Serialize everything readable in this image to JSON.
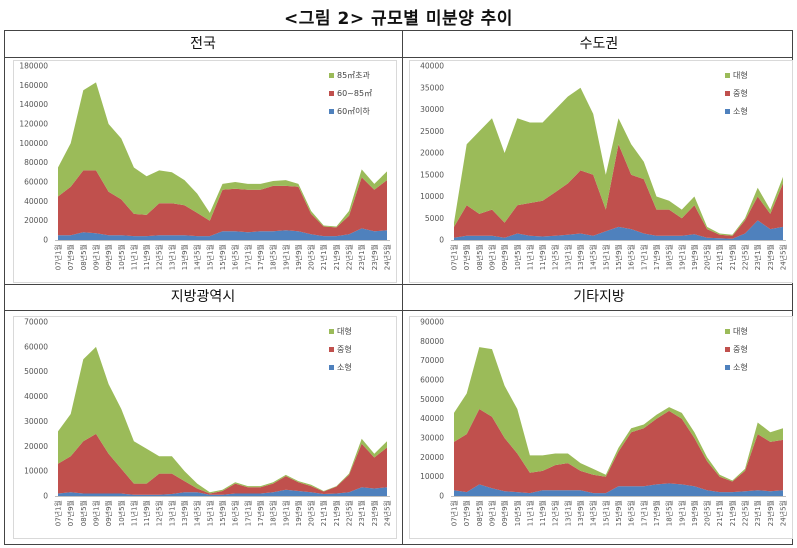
{
  "figure_title": "<그림 2> 규모별 미분양 추이",
  "colors": {
    "small": "#4f81bd",
    "medium": "#c0504d",
    "large": "#9bbb59"
  },
  "chart_data": [
    {
      "type": "area",
      "stacked": true,
      "title": "전국",
      "categories": [
        "07년1월",
        "07년9월",
        "08년5월",
        "09년1월",
        "09년9월",
        "10년5월",
        "11년1월",
        "11년9월",
        "12년5월",
        "13년1월",
        "13년9월",
        "14년5월",
        "15년1월",
        "15년9월",
        "16년5월",
        "17년1월",
        "17년9월",
        "18년5월",
        "19년1월",
        "19년9월",
        "20년5월",
        "21년1월",
        "21년9월",
        "22년5월",
        "23년1월",
        "23년9월",
        "24년5월"
      ],
      "ylim": [
        0,
        180000
      ],
      "yticks": [
        "0",
        "20000",
        "40000",
        "60000",
        "80000",
        "100000",
        "120000",
        "140000",
        "160000",
        "180000"
      ],
      "legend": "top-right",
      "series": [
        {
          "name": "60㎡이하",
          "values": [
            5000,
            5000,
            8000,
            7000,
            5000,
            5000,
            4000,
            4000,
            5000,
            5000,
            5000,
            4000,
            4000,
            9000,
            9000,
            8000,
            9000,
            9000,
            10000,
            9000,
            6000,
            4000,
            4000,
            6000,
            12000,
            9000,
            10000
          ]
        },
        {
          "name": "60~85㎡",
          "values": [
            40000,
            50000,
            64000,
            65000,
            45000,
            37000,
            23000,
            22000,
            33000,
            33000,
            31000,
            24000,
            16000,
            43000,
            44000,
            44000,
            43000,
            47000,
            46000,
            46000,
            21000,
            10000,
            9000,
            19000,
            53000,
            43000,
            52000
          ]
        },
        {
          "name": "85㎡초과",
          "values": [
            30000,
            45000,
            83000,
            91000,
            70000,
            63000,
            48000,
            40000,
            34000,
            32000,
            26000,
            20000,
            8000,
            6000,
            7000,
            6000,
            6000,
            5000,
            6000,
            3000,
            3000,
            1000,
            1000,
            5000,
            8000,
            6000,
            9000
          ]
        }
      ]
    },
    {
      "type": "area",
      "stacked": true,
      "title": "수도권",
      "categories": [
        "07년1월",
        "07년9월",
        "08년5월",
        "09년1월",
        "09년9월",
        "10년5월",
        "11년1월",
        "11년9월",
        "12년5월",
        "13년1월",
        "13년9월",
        "14년5월",
        "15년1월",
        "15년9월",
        "16년5월",
        "17년1월",
        "17년9월",
        "18년5월",
        "19년1월",
        "19년9월",
        "20년5월",
        "21년1월",
        "21년9월",
        "22년5월",
        "23년1월",
        "23년9월",
        "24년5월"
      ],
      "ylim": [
        0,
        40000
      ],
      "yticks": [
        "0",
        "5000",
        "10000",
        "15000",
        "20000",
        "25000",
        "30000",
        "35000",
        "40000"
      ],
      "legend": "top-right",
      "series": [
        {
          "name": "소형",
          "values": [
            500,
            1000,
            1000,
            1000,
            500,
            1500,
            1000,
            800,
            1000,
            1200,
            1500,
            1000,
            2000,
            3000,
            2500,
            1500,
            1000,
            1000,
            1000,
            1300,
            500,
            400,
            300,
            1500,
            4500,
            2500,
            3000
          ]
        },
        {
          "name": "중형",
          "values": [
            2500,
            7000,
            5000,
            6000,
            3500,
            6500,
            7500,
            8200,
            10000,
            11800,
            14500,
            14000,
            5000,
            19000,
            12500,
            12500,
            6000,
            6000,
            4000,
            6700,
            2000,
            800,
            700,
            3000,
            5500,
            3500,
            10000
          ]
        },
        {
          "name": "대형",
          "values": [
            1000,
            14000,
            19000,
            21000,
            16000,
            20000,
            18500,
            18000,
            19000,
            20000,
            19000,
            14000,
            8000,
            6000,
            7000,
            4000,
            3000,
            2000,
            2000,
            2000,
            500,
            300,
            200,
            500,
            2000,
            1000,
            1500
          ]
        }
      ]
    },
    {
      "type": "area",
      "stacked": true,
      "title": "지방광역시",
      "categories": [
        "07년1월",
        "07년9월",
        "08년5월",
        "09년1월",
        "09년9월",
        "10년5월",
        "11년1월",
        "11년9월",
        "12년5월",
        "13년1월",
        "13년9월",
        "14년5월",
        "15년1월",
        "15년9월",
        "16년5월",
        "17년1월",
        "17년9월",
        "18년5월",
        "19년1월",
        "19년9월",
        "20년5월",
        "21년1월",
        "21년9월",
        "22년5월",
        "23년1월",
        "23년9월",
        "24년5월"
      ],
      "ylim": [
        0,
        70000
      ],
      "yticks": [
        "0",
        "10000",
        "20000",
        "30000",
        "40000",
        "50000",
        "60000",
        "70000"
      ],
      "legend": "top-right",
      "series": [
        {
          "name": "소형",
          "values": [
            1000,
            1500,
            1000,
            1000,
            1000,
            1000,
            500,
            500,
            500,
            800,
            1500,
            1500,
            500,
            500,
            1000,
            1000,
            1000,
            1500,
            2500,
            2000,
            1500,
            800,
            1000,
            1500,
            3500,
            3000,
            3500
          ]
        },
        {
          "name": "중형",
          "values": [
            12000,
            14500,
            21000,
            24000,
            16000,
            10000,
            4500,
            4500,
            8500,
            8200,
            4500,
            1500,
            500,
            1500,
            4000,
            2500,
            2500,
            3500,
            5500,
            3500,
            2500,
            1000,
            2800,
            7000,
            17500,
            12500,
            16000
          ]
        },
        {
          "name": "대형",
          "values": [
            13000,
            17000,
            33000,
            35000,
            28000,
            24000,
            17000,
            14000,
            7000,
            7000,
            4000,
            2000,
            500,
            500,
            500,
            500,
            500,
            500,
            500,
            500,
            500,
            200,
            200,
            500,
            2000,
            1500,
            2500
          ]
        }
      ]
    },
    {
      "type": "area",
      "stacked": true,
      "title": "기타지방",
      "categories": [
        "07년1월",
        "07년9월",
        "08년5월",
        "09년1월",
        "09년9월",
        "10년5월",
        "11년1월",
        "11년9월",
        "12년5월",
        "13년1월",
        "13년9월",
        "14년5월",
        "15년1월",
        "15년9월",
        "16년5월",
        "17년1월",
        "17년9월",
        "18년5월",
        "19년1월",
        "19년9월",
        "20년5월",
        "21년1월",
        "21년9월",
        "22년5월",
        "23년1월",
        "23년9월",
        "24년5월"
      ],
      "ylim": [
        0,
        90000
      ],
      "yticks": [
        "0",
        "10000",
        "20000",
        "30000",
        "40000",
        "50000",
        "60000",
        "70000",
        "80000",
        "90000"
      ],
      "legend": "top-right",
      "series": [
        {
          "name": "소형",
          "values": [
            3000,
            2000,
            6000,
            4000,
            2500,
            2000,
            1500,
            3000,
            3000,
            3000,
            3000,
            1500,
            1500,
            5000,
            5000,
            5000,
            6000,
            6500,
            6000,
            5000,
            3000,
            2000,
            2000,
            2500,
            3000,
            2500,
            3000
          ]
        },
        {
          "name": "중형",
          "values": [
            25000,
            30000,
            39000,
            37000,
            27500,
            20000,
            10500,
            10000,
            13000,
            14000,
            10000,
            9500,
            8500,
            18000,
            28000,
            30000,
            34000,
            37500,
            34000,
            25000,
            15000,
            8000,
            5500,
            10500,
            29000,
            25500,
            26000
          ]
        },
        {
          "name": "대형",
          "values": [
            15000,
            21000,
            32000,
            35000,
            27000,
            23000,
            9000,
            8000,
            6000,
            5000,
            4000,
            3000,
            1000,
            2000,
            2000,
            2000,
            2000,
            2000,
            3000,
            3000,
            2000,
            1000,
            500,
            1000,
            6000,
            5000,
            6000
          ]
        }
      ]
    }
  ]
}
